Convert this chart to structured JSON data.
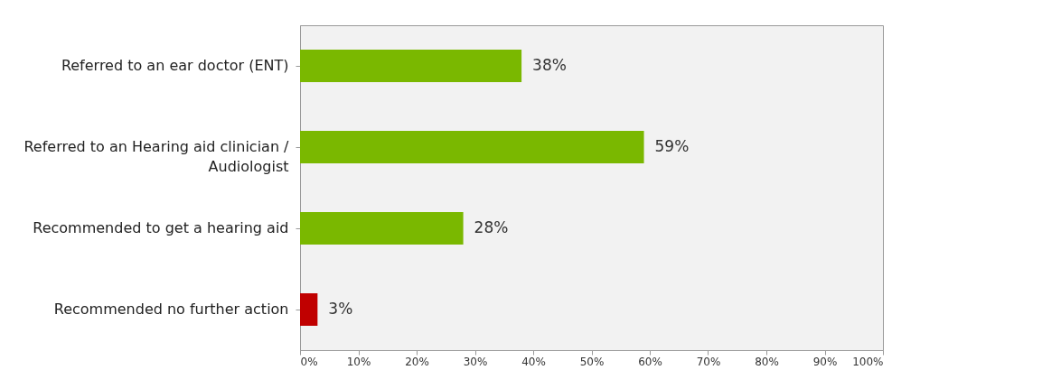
{
  "chart_data": {
    "type": "bar",
    "orientation": "horizontal",
    "categories": [
      "Referred to an ear doctor (ENT)",
      "Referred to an Hearing aid clinician /\nAudiologist",
      "Recommended to get a hearing aid",
      "Recommended no further action"
    ],
    "values": [
      38,
      59,
      28,
      3
    ],
    "colors": [
      "#7ab800",
      "#7ab800",
      "#7ab800",
      "#c00000"
    ],
    "value_labels": [
      "38%",
      "59%",
      "28%",
      "3%"
    ],
    "xlim": [
      0,
      100
    ],
    "xticks": [
      {
        "value": 0,
        "label": "0%"
      },
      {
        "value": 10,
        "label": "10%"
      },
      {
        "value": 20,
        "label": "20%"
      },
      {
        "value": 30,
        "label": "30%"
      },
      {
        "value": 40,
        "label": "40%"
      },
      {
        "value": 50,
        "label": "50%"
      },
      {
        "value": 60,
        "label": "60%"
      },
      {
        "value": 70,
        "label": "70%"
      },
      {
        "value": 80,
        "label": "80%"
      },
      {
        "value": 90,
        "label": "90%"
      },
      {
        "value": 100,
        "label": "100%"
      }
    ],
    "grid": false
  }
}
